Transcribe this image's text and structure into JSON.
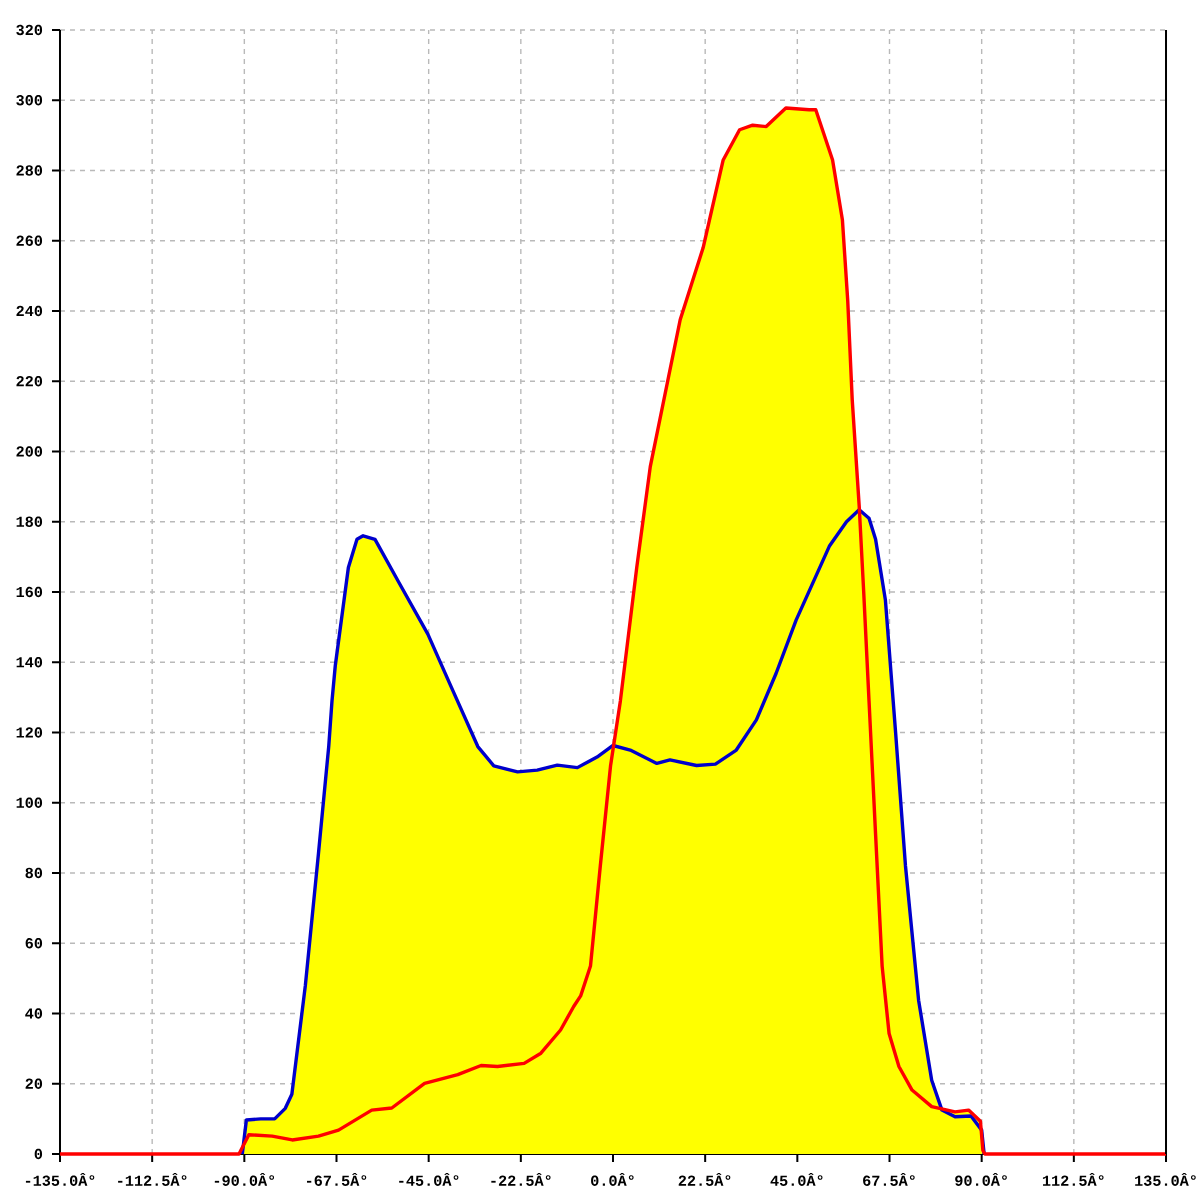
{
  "chart_data": {
    "type": "line",
    "xlim": [
      -135,
      135
    ],
    "ylim": [
      0,
      320
    ],
    "xticks": [
      {
        "value": -135,
        "label": "-135.0Â°"
      },
      {
        "value": -112.5,
        "label": "-112.5Â°"
      },
      {
        "value": -90,
        "label": "-90.0Â°"
      },
      {
        "value": -67.5,
        "label": "-67.5Â°"
      },
      {
        "value": -45,
        "label": "-45.0Â°"
      },
      {
        "value": -22.5,
        "label": "-22.5Â°"
      },
      {
        "value": 0,
        "label": "0.0Â°"
      },
      {
        "value": 22.5,
        "label": "22.5Â°"
      },
      {
        "value": 45,
        "label": "45.0Â°"
      },
      {
        "value": 67.5,
        "label": "67.5Â°"
      },
      {
        "value": 90,
        "label": "90.0Â°"
      },
      {
        "value": 112.5,
        "label": "112.5Â°"
      },
      {
        "value": 135,
        "label": "135.0Â°"
      }
    ],
    "yticks": [
      0,
      20,
      40,
      60,
      80,
      100,
      120,
      140,
      160,
      180,
      200,
      220,
      240,
      260,
      280,
      300,
      320
    ],
    "grid": true,
    "series": [
      {
        "color": "#0000cc",
        "x": [
          -90.5,
          -89.5,
          -86,
          -82.6,
          -80,
          -78.4,
          -75.1,
          -71.9,
          -69.4,
          -68.6,
          -67.8,
          -64.6,
          -62.5,
          -61,
          -58.1,
          -52.4,
          -45.2,
          -39.5,
          -33,
          -29.1,
          -23.3,
          -18.5,
          -13.6,
          -8.7,
          -3.9,
          0,
          4.2,
          10.7,
          13.9,
          20.4,
          25,
          30.1,
          35,
          39.8,
          44.7,
          52.8,
          57,
          60.1,
          62.5,
          64.1,
          66.5,
          69,
          71.4,
          74.6,
          77.8,
          80.3,
          83.5,
          87.4,
          90,
          90.6
        ],
        "values": [
          0,
          9.7,
          10,
          10,
          13,
          17,
          48,
          85.6,
          116,
          129,
          139,
          167,
          175,
          176,
          175,
          163,
          148,
          133,
          116,
          110.5,
          108.8,
          109.3,
          110.7,
          110,
          113,
          116.3,
          115,
          111.2,
          112.2,
          110.6,
          111,
          115,
          123.6,
          136.8,
          152,
          173,
          180,
          183.4,
          181,
          175,
          157.7,
          119.8,
          82,
          43.8,
          21,
          12.5,
          10.6,
          10.8,
          6.8,
          0
        ]
      },
      {
        "color": "#ff0000",
        "x": [
          -135,
          -91.3,
          -88.9,
          -83.2,
          -78.3,
          -71.9,
          -67,
          -58.9,
          -54,
          -46,
          -37.9,
          -32.2,
          -28.2,
          -21.7,
          -17.6,
          -12.8,
          -9.6,
          -7.9,
          -5.5,
          -3.1,
          -0.6,
          1.8,
          5.8,
          9.1,
          16.4,
          22,
          26.9,
          30.9,
          34.1,
          37.4,
          42.2,
          47.9,
          49.5,
          53.6,
          56,
          57.3,
          58.4,
          60.1,
          61.2,
          62.5,
          64.1,
          65.7,
          67.4,
          69.8,
          73,
          77.8,
          83.5,
          86.8,
          89.7,
          90.3,
          90.8,
          135
        ],
        "values": [
          0,
          0,
          5.5,
          5.1,
          4,
          5.1,
          6.8,
          12.5,
          13.1,
          20.1,
          22.6,
          25.2,
          24.9,
          25.8,
          28.7,
          35.3,
          42,
          45,
          53.5,
          82,
          110.5,
          129,
          167,
          195.7,
          237.5,
          258,
          283,
          291.6,
          292.9,
          292.5,
          297.8,
          297.3,
          297.3,
          283,
          266,
          243,
          214.7,
          184.5,
          160,
          129,
          91,
          53.5,
          34.3,
          24.9,
          18.2,
          13.5,
          12,
          12.5,
          9.3,
          1,
          0,
          0
        ]
      }
    ]
  }
}
